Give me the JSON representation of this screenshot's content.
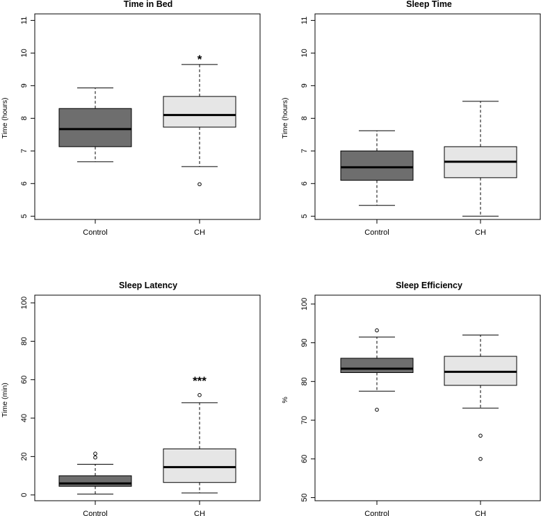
{
  "chart_data": [
    {
      "type": "boxplot",
      "title": "Time in Bed",
      "ylabel": "Time (hours)",
      "ylim": [
        4.9,
        11.2
      ],
      "yticks": [
        "5",
        "6",
        "7",
        "8",
        "9",
        "10",
        "11"
      ],
      "categories": [
        "Control",
        "CH"
      ],
      "colors": [
        "#6e6e6e",
        "#e6e6e6"
      ],
      "boxes": [
        {
          "name": "Control",
          "whisker_low": 6.67,
          "q1": 7.13,
          "median": 7.67,
          "q3": 8.3,
          "whisker_high": 8.93,
          "outliers": []
        },
        {
          "name": "CH",
          "whisker_low": 6.52,
          "q1": 7.73,
          "median": 8.1,
          "q3": 8.67,
          "whisker_high": 9.65,
          "outliers": [
            5.98
          ]
        }
      ],
      "significance": {
        "category": "CH",
        "label": "*",
        "y": 9.98
      }
    },
    {
      "type": "boxplot",
      "title": "Sleep Time",
      "ylabel": "Time (hours)",
      "ylim": [
        4.9,
        11.2
      ],
      "yticks": [
        "5",
        "6",
        "7",
        "8",
        "9",
        "10",
        "11"
      ],
      "categories": [
        "Control",
        "CH"
      ],
      "colors": [
        "#6e6e6e",
        "#e6e6e6"
      ],
      "boxes": [
        {
          "name": "Control",
          "whisker_low": 5.33,
          "q1": 6.1,
          "median": 6.5,
          "q3": 7.0,
          "whisker_high": 7.62,
          "outliers": []
        },
        {
          "name": "CH",
          "whisker_low": 5.0,
          "q1": 6.18,
          "median": 6.67,
          "q3": 7.13,
          "whisker_high": 8.52,
          "outliers": []
        }
      ],
      "significance": null
    },
    {
      "type": "boxplot",
      "title": "Sleep Latency",
      "ylabel": "Time (min)",
      "ylim": [
        -3,
        104
      ],
      "yticks": [
        "0",
        "20",
        "40",
        "60",
        "80",
        "100"
      ],
      "categories": [
        "Control",
        "CH"
      ],
      "colors": [
        "#6e6e6e",
        "#e6e6e6"
      ],
      "boxes": [
        {
          "name": "Control",
          "whisker_low": 0.5,
          "q1": 4.5,
          "median": 6.0,
          "q3": 10.0,
          "whisker_high": 16.0,
          "outliers": [
            19.5,
            21.5
          ]
        },
        {
          "name": "CH",
          "whisker_low": 1.0,
          "q1": 6.5,
          "median": 14.5,
          "q3": 24.0,
          "whisker_high": 48.0,
          "outliers": [
            52.0
          ]
        }
      ],
      "significance": {
        "category": "CH",
        "label": "***",
        "y": 59.5
      }
    },
    {
      "type": "boxplot",
      "title": "Sleep Efficiency",
      "ylabel": "%",
      "ylim": [
        49.2,
        102.3
      ],
      "yticks": [
        "50",
        "60",
        "70",
        "80",
        "90",
        "100"
      ],
      "categories": [
        "Control",
        "CH"
      ],
      "colors": [
        "#6e6e6e",
        "#e6e6e6"
      ],
      "boxes": [
        {
          "name": "Control",
          "whisker_low": 77.5,
          "q1": 82.3,
          "median": 83.3,
          "q3": 86.0,
          "whisker_high": 91.5,
          "outliers": [
            72.7,
            93.2
          ]
        },
        {
          "name": "CH",
          "whisker_low": 73.1,
          "q1": 79.0,
          "median": 82.5,
          "q3": 86.5,
          "whisker_high": 92.0,
          "outliers": [
            66.0,
            60.0
          ]
        }
      ],
      "significance": null
    }
  ]
}
